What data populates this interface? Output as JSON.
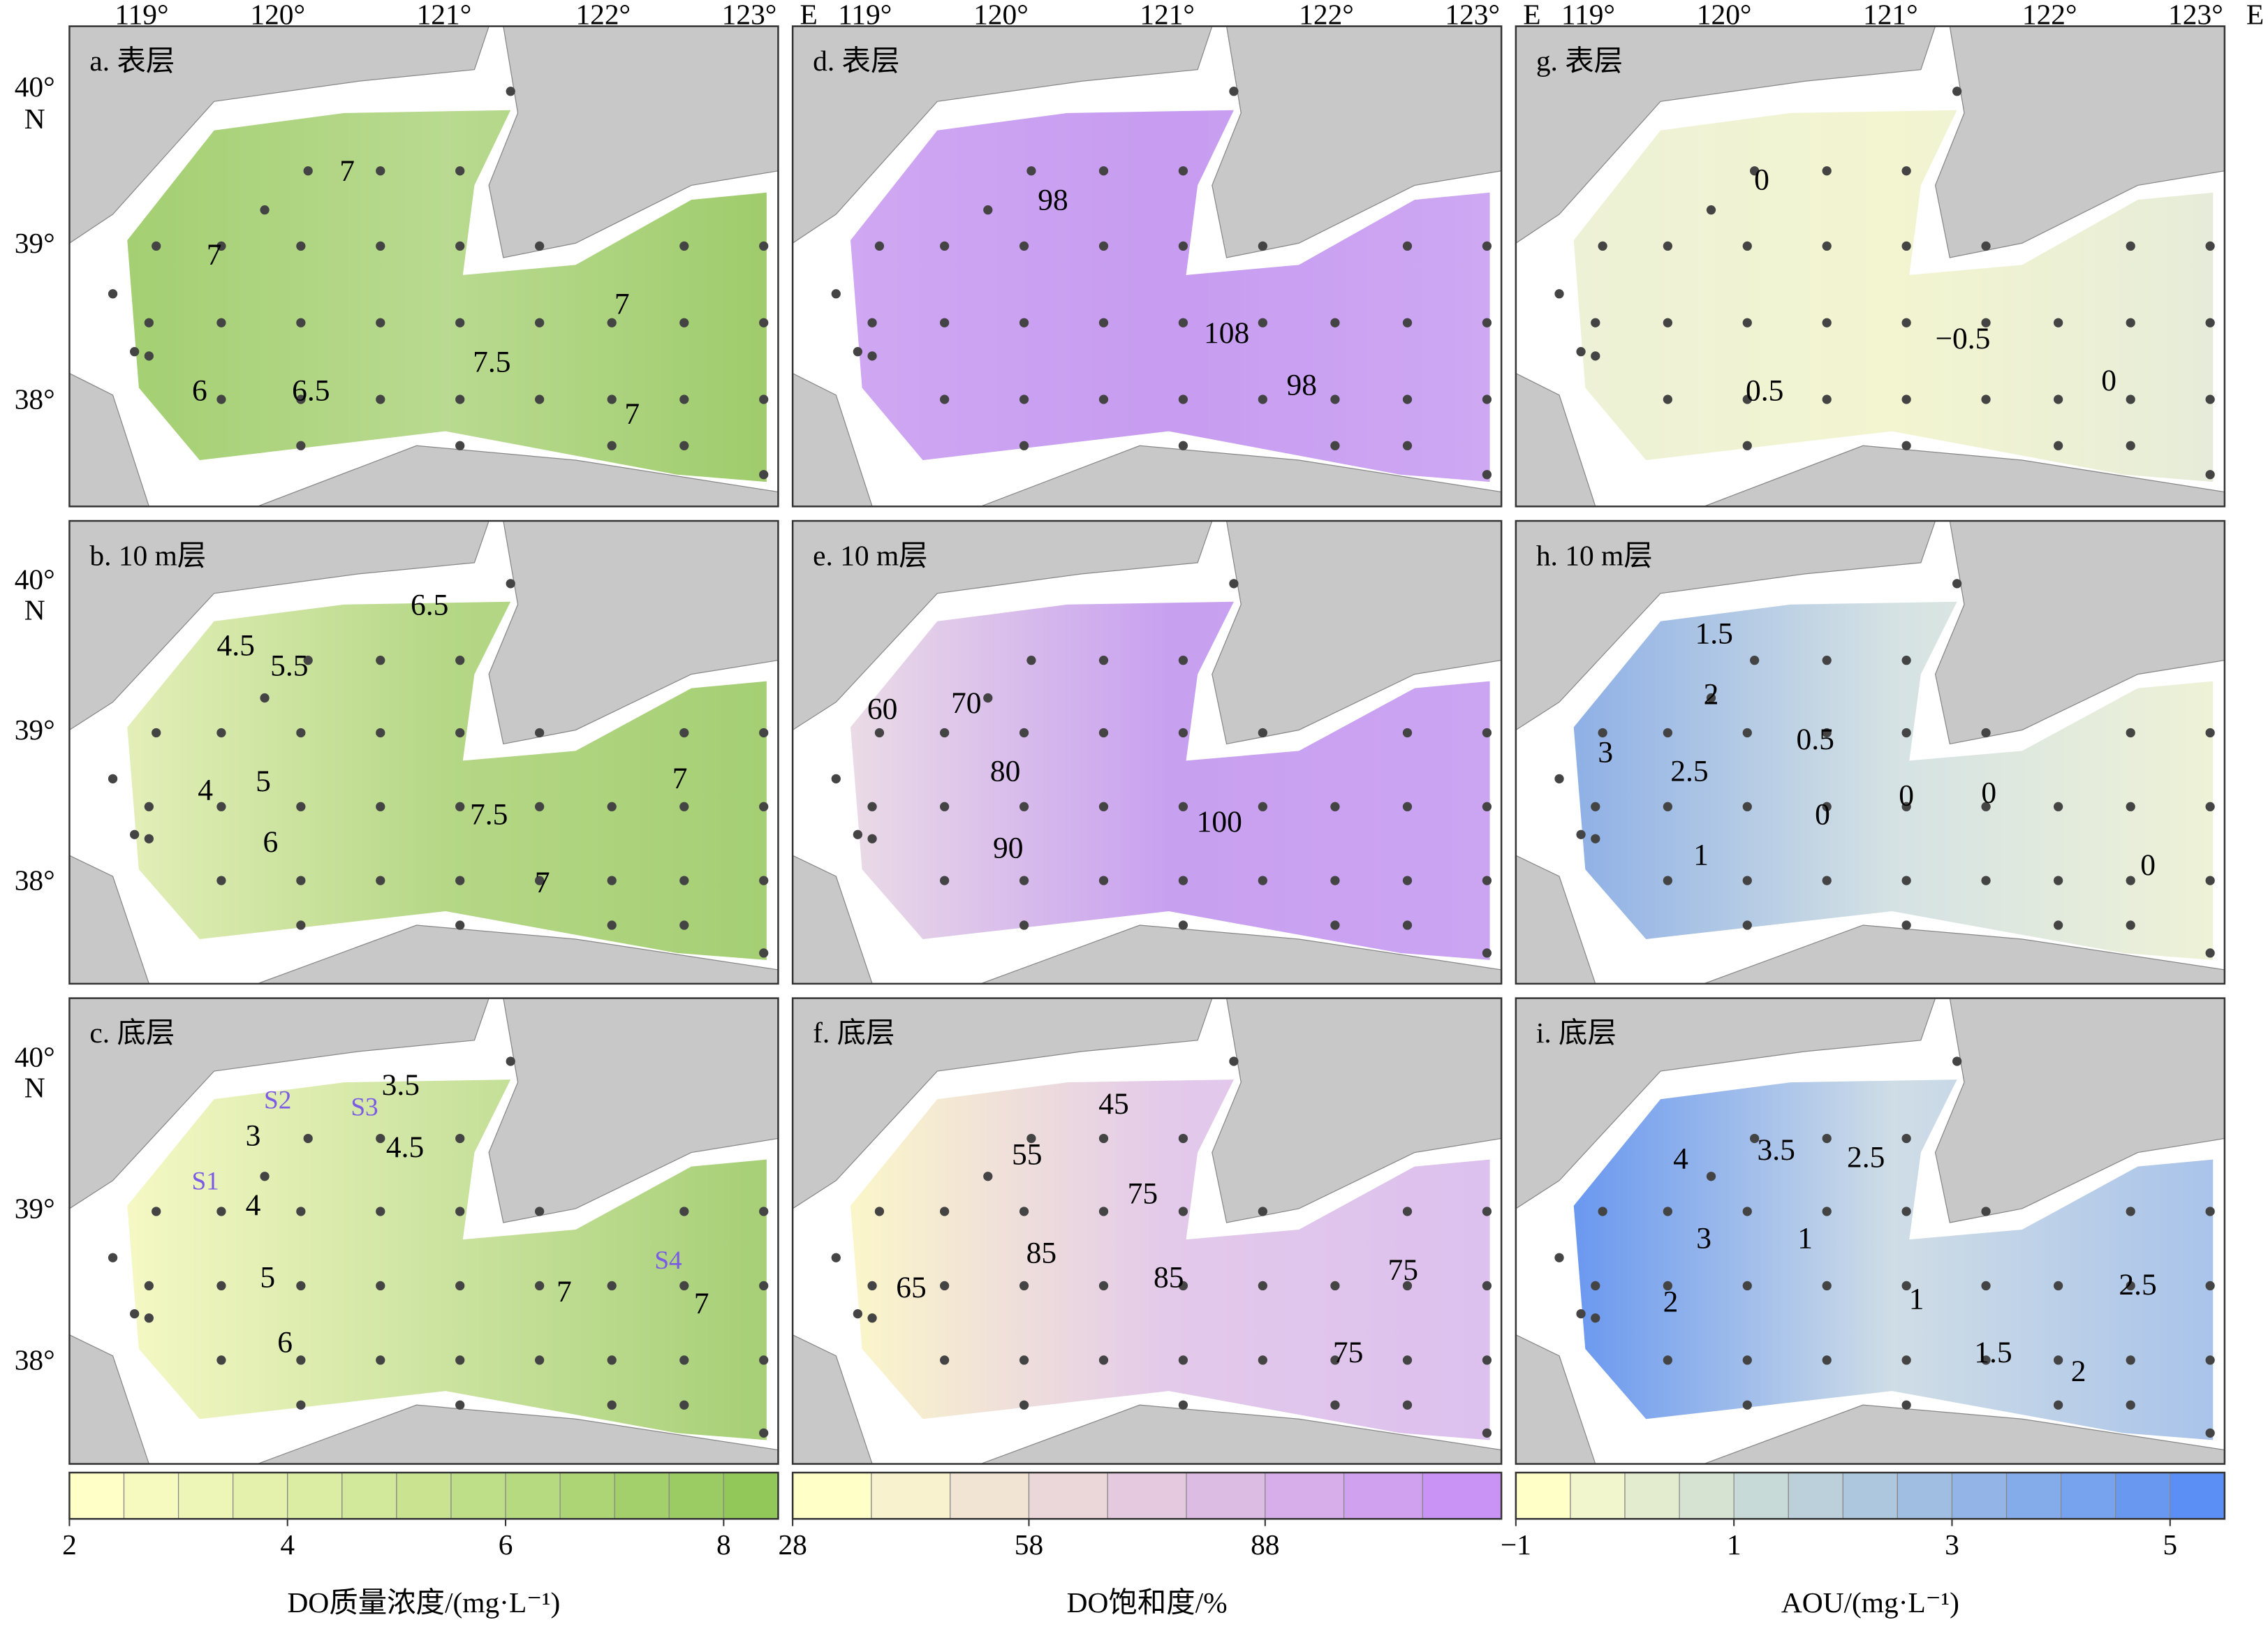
{
  "longitude_labels": [
    "119°",
    "120°",
    "121°",
    "122°",
    "123°"
  ],
  "east_label": "E",
  "latitude_labels": [
    "40°",
    "39°",
    "38°"
  ],
  "north_label": "N",
  "panels": [
    {
      "label": "a. 表层",
      "contour_labels": [
        "7",
        "7",
        "7",
        "7.5",
        "6",
        "6.5",
        "7"
      ]
    },
    {
      "label": "d. 表层",
      "contour_labels": [
        "98",
        "108",
        "98"
      ]
    },
    {
      "label": "g. 表层",
      "contour_labels": [
        "0",
        "−0.5",
        "0.5",
        "0"
      ]
    },
    {
      "label": "b. 10 m层",
      "contour_labels": [
        "6.5",
        "4.5",
        "5.5",
        "4",
        "5",
        "6",
        "7.5",
        "7",
        "7"
      ]
    },
    {
      "label": "e. 10 m层",
      "contour_labels": [
        "70",
        "60",
        "80",
        "90",
        "100"
      ]
    },
    {
      "label": "h. 10 m层",
      "contour_labels": [
        "1.5",
        "2",
        "3",
        "2.5",
        "0.5",
        "0",
        "0",
        "0",
        "1",
        "0"
      ]
    },
    {
      "label": "c. 底层",
      "contour_labels": [
        "3.5",
        "3",
        "4.5",
        "4",
        "5",
        "6",
        "7",
        "7"
      ]
    },
    {
      "label": "f. 底层",
      "contour_labels": [
        "45",
        "55",
        "75",
        "65",
        "85",
        "85",
        "75",
        "75"
      ]
    },
    {
      "label": "i. 底层",
      "contour_labels": [
        "4",
        "3.5",
        "2.5",
        "1",
        "3",
        "2",
        "1",
        "2.5",
        "1.5",
        "2"
      ]
    }
  ],
  "station_labels": [
    "S1",
    "S2",
    "S3",
    "S4"
  ],
  "colorbars": [
    {
      "title": "DO质量浓度/(mg·L⁻¹)",
      "lim": [
        2,
        8.5
      ],
      "ticks": [
        2,
        4,
        6,
        8
      ],
      "levels": [
        2,
        2.5,
        3,
        3.5,
        4,
        4.5,
        5,
        5.5,
        6,
        6.5,
        7,
        7.5,
        8,
        8.5
      ],
      "colors": [
        "#ffffc8",
        "#92c75a"
      ]
    },
    {
      "title": "DO饱和度/%",
      "lim": [
        28,
        118
      ],
      "ticks": [
        28,
        58,
        88
      ],
      "levels": [
        28,
        38,
        48,
        58,
        68,
        78,
        88,
        98,
        108,
        118
      ],
      "colors": [
        "#ffffc8",
        "#c993f5"
      ]
    },
    {
      "title": "AOU/(mg·L⁻¹)",
      "lim": [
        -1,
        5.5
      ],
      "ticks": [
        {
          "value": -1,
          "label": "−1"
        },
        1,
        3,
        5
      ],
      "levels": [
        -1,
        -0.5,
        0,
        0.5,
        1,
        1.5,
        2,
        2.5,
        3,
        3.5,
        4,
        4.5,
        5,
        5.5
      ],
      "colors": [
        "#ffffc8",
        "#5b8ff5"
      ]
    }
  ]
}
